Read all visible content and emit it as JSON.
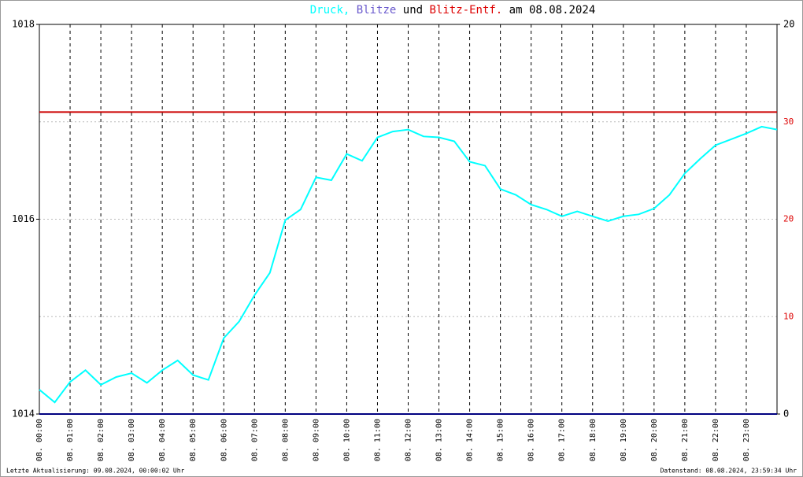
{
  "chart_data": {
    "type": "line",
    "title_parts": [
      {
        "text": "Druck,",
        "color": "#00ffff"
      },
      {
        "text": "Blitze",
        "color": "#6a5acd"
      },
      {
        "text": "und",
        "color": "#000000"
      },
      {
        "text": "Blitz-Entf.",
        "color": "#dd0000"
      },
      {
        "text": "am 08.08.2024",
        "color": "#000000"
      }
    ],
    "footer_left": "Letzte Aktualisierung: 09.08.2024, 00:00:02 Uhr",
    "footer_right": "Datenstand: 08.08.2024, 23:59:34 Uhr",
    "xlim": [
      0,
      24
    ],
    "xticks": [
      {
        "value": 0,
        "label": "08. 00:00"
      },
      {
        "value": 1,
        "label": "08. 01:00"
      },
      {
        "value": 2,
        "label": "08. 02:00"
      },
      {
        "value": 3,
        "label": "08. 03:00"
      },
      {
        "value": 4,
        "label": "08. 04:00"
      },
      {
        "value": 5,
        "label": "08. 05:00"
      },
      {
        "value": 6,
        "label": "08. 06:00"
      },
      {
        "value": 7,
        "label": "08. 07:00"
      },
      {
        "value": 8,
        "label": "08. 08:00"
      },
      {
        "value": 9,
        "label": "08. 09:00"
      },
      {
        "value": 10,
        "label": "08. 10:00"
      },
      {
        "value": 11,
        "label": "08. 11:00"
      },
      {
        "value": 12,
        "label": "08. 12:00"
      },
      {
        "value": 13,
        "label": "08. 13:00"
      },
      {
        "value": 14,
        "label": "08. 14:00"
      },
      {
        "value": 15,
        "label": "08. 15:00"
      },
      {
        "value": 16,
        "label": "08. 16:00"
      },
      {
        "value": 17,
        "label": "08. 17:00"
      },
      {
        "value": 18,
        "label": "08. 18:00"
      },
      {
        "value": 19,
        "label": "08. 19:00"
      },
      {
        "value": 20,
        "label": "08. 20:00"
      },
      {
        "value": 21,
        "label": "08. 21:00"
      },
      {
        "value": 22,
        "label": "08. 22:00"
      },
      {
        "value": 23,
        "label": "08. 23:00"
      }
    ],
    "ylim": [
      1014,
      1018
    ],
    "yticks": [
      1014,
      1016,
      1018
    ],
    "y2lim": [
      0,
      20
    ],
    "y2ticks": [
      0,
      20
    ],
    "y3lim": [
      0,
      40
    ],
    "y3ticks": [
      10,
      20,
      30
    ],
    "y3tick_color": "#dd0000",
    "grid": true,
    "series": [
      {
        "name": "Druck",
        "color": "#00ffff",
        "x": [
          0,
          0.5,
          1,
          1.5,
          2,
          2.5,
          3,
          3.5,
          4,
          4.5,
          5,
          5.5,
          6,
          6.5,
          7,
          7.5,
          8,
          8.5,
          9,
          9.5,
          10,
          10.5,
          11,
          11.5,
          12,
          12.5,
          13,
          13.5,
          14,
          14.5,
          15,
          15.5,
          16,
          16.5,
          17,
          17.5,
          18,
          18.5,
          19,
          19.5,
          20,
          20.5,
          21,
          21.5,
          22,
          22.5,
          23,
          23.5,
          24
        ],
        "values": [
          1014.25,
          1014.12,
          1014.33,
          1014.45,
          1014.3,
          1014.38,
          1014.42,
          1014.32,
          1014.45,
          1014.55,
          1014.4,
          1014.35,
          1014.78,
          1014.95,
          1015.22,
          1015.45,
          1015.99,
          1016.1,
          1016.43,
          1016.4,
          1016.67,
          1016.6,
          1016.84,
          1016.9,
          1016.92,
          1016.85,
          1016.84,
          1016.8,
          1016.59,
          1016.55,
          1016.31,
          1016.25,
          1016.15,
          1016.1,
          1016.03,
          1016.08,
          1016.03,
          1015.98,
          1016.03,
          1016.05,
          1016.11,
          1016.25,
          1016.47,
          1016.62,
          1016.76,
          1016.82,
          1016.88,
          1016.95,
          1016.92
        ]
      },
      {
        "name": "Blitze",
        "color": "#000080",
        "axis": "y2",
        "x": [
          0,
          24
        ],
        "values": [
          0,
          0
        ]
      },
      {
        "name": "Blitz-Entf.",
        "color": "#cc0000",
        "axis": "y3",
        "x": [
          0,
          24
        ],
        "values": [
          31,
          31
        ]
      }
    ]
  }
}
